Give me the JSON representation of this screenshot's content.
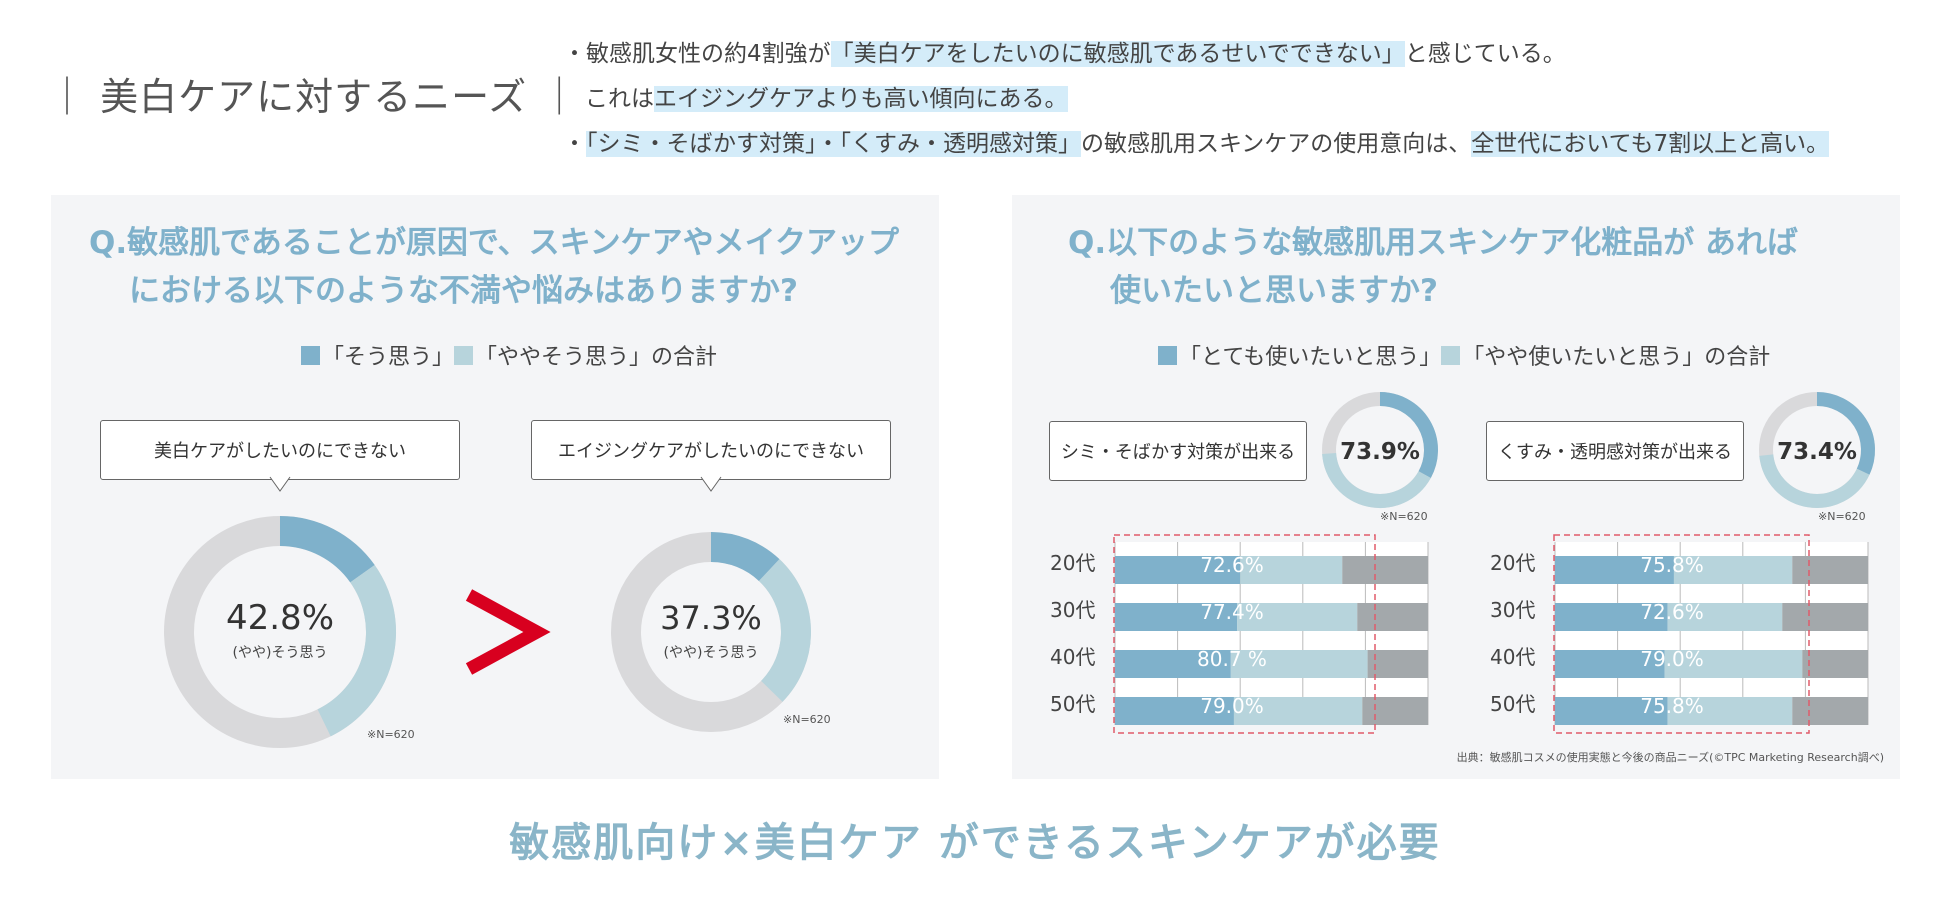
{
  "header": {
    "title": "｜ 美白ケアに対するニーズ ｜",
    "bullets": [
      [
        "・敏感肌女性の約4割強が",
        "「美白ケアをしたいのに敏感肌であるせいでできない」",
        "と感じている。"
      ],
      [
        "これは",
        "エイジングケアよりも高い傾向にある。",
        ""
      ],
      [
        "・",
        "「シミ・そばかす対策」・「くすみ・透明感対策」",
        "の敏感肌用スキンケアの使用意向は、",
        "全世代においても7割以上と高い。"
      ]
    ]
  },
  "left": {
    "question": [
      "Q.敏感肌であることが原因で、スキンケアやメイクアップ",
      "における以下のような不満や悩みはありますか?"
    ],
    "legend": {
      "dark": "「そう思う」",
      "light": "「ややそう思う」の合計"
    },
    "comparator": ">"
  },
  "right": {
    "question": [
      "Q.以下のような敏感肌用スキンケア化粧品が あれば",
      "使いたいと思いますか?"
    ],
    "legend": {
      "dark": "「とても使いたいと思う」",
      "light": "「やや使いたいと思う」の合計"
    }
  },
  "colors": {
    "dark": "#7fb1cb",
    "light": "#b7d4dc",
    "gray": "#d9d9db",
    "barGray": "#a3a8ab",
    "red": "#d8001f"
  },
  "chart_data": [
    {
      "type": "pie",
      "title": "美白ケアがしたいのにできない",
      "center_value": "42.8%",
      "center_label": "(やや)そう思う",
      "slices": [
        {
          "name": "そう思う",
          "value": 15.2
        },
        {
          "name": "ややそう思う",
          "value": 27.6
        },
        {
          "name": "その他",
          "value": 57.2
        }
      ],
      "note": "※N=620"
    },
    {
      "type": "pie",
      "title": "エイジングケアがしたいのにできない",
      "center_value": "37.3%",
      "center_label": "(やや)そう思う",
      "slices": [
        {
          "name": "そう思う",
          "value": 12.0
        },
        {
          "name": "ややそう思う",
          "value": 25.3
        },
        {
          "name": "その他",
          "value": 62.7
        }
      ],
      "note": "※N=620"
    },
    {
      "type": "pie",
      "title": "シミ・そばかす対策が出来る",
      "center_value": "73.9%",
      "slices": [
        {
          "name": "とても使いたいと思う",
          "value": 33.0
        },
        {
          "name": "やや使いたいと思う",
          "value": 40.9
        },
        {
          "name": "その他",
          "value": 26.1
        }
      ],
      "note": "※N=620"
    },
    {
      "type": "pie",
      "title": "くすみ・透明感対策が出来る",
      "center_value": "73.4%",
      "slices": [
        {
          "name": "とても使いたいと思う",
          "value": 32.0
        },
        {
          "name": "やや使いたいと思う",
          "value": 41.4
        },
        {
          "name": "その他",
          "value": 26.6
        }
      ],
      "note": "※N=620"
    },
    {
      "type": "bar",
      "title": "シミ・そばかす対策が出来る 年代別",
      "categories": [
        "20代",
        "30代",
        "40代",
        "50代"
      ],
      "labels": [
        "72.6%",
        "77.4%",
        "80.7 %",
        "79.0%"
      ],
      "series": [
        {
          "name": "とても使いたいと思う",
          "values": [
            40,
            39,
            37,
            38
          ]
        },
        {
          "name": "やや使いたいと思う",
          "values": [
            32.6,
            38.4,
            43.7,
            41.0
          ]
        },
        {
          "name": "その他",
          "values": [
            27.4,
            22.6,
            19.3,
            21.0
          ]
        }
      ],
      "xlim": [
        0,
        100
      ]
    },
    {
      "type": "bar",
      "title": "くすみ・透明感対策が出来る 年代別",
      "categories": [
        "20代",
        "30代",
        "40代",
        "50代"
      ],
      "labels": [
        "75.8%",
        "72.6%",
        "79.0%",
        "75.8%"
      ],
      "series": [
        {
          "name": "とても使いたいと思う",
          "values": [
            38,
            36,
            35,
            36
          ]
        },
        {
          "name": "やや使いたいと思う",
          "values": [
            37.8,
            36.6,
            44.0,
            39.8
          ]
        },
        {
          "name": "その他",
          "values": [
            24.2,
            27.4,
            21.0,
            24.2
          ]
        }
      ],
      "xlim": [
        0,
        100
      ]
    }
  ],
  "source": "出典：敏感肌コスメの使用実態と今後の商品ニーズ(©TPC Marketing Research調べ)",
  "footer": "敏感肌向け×美白ケア ができるスキンケアが必要"
}
